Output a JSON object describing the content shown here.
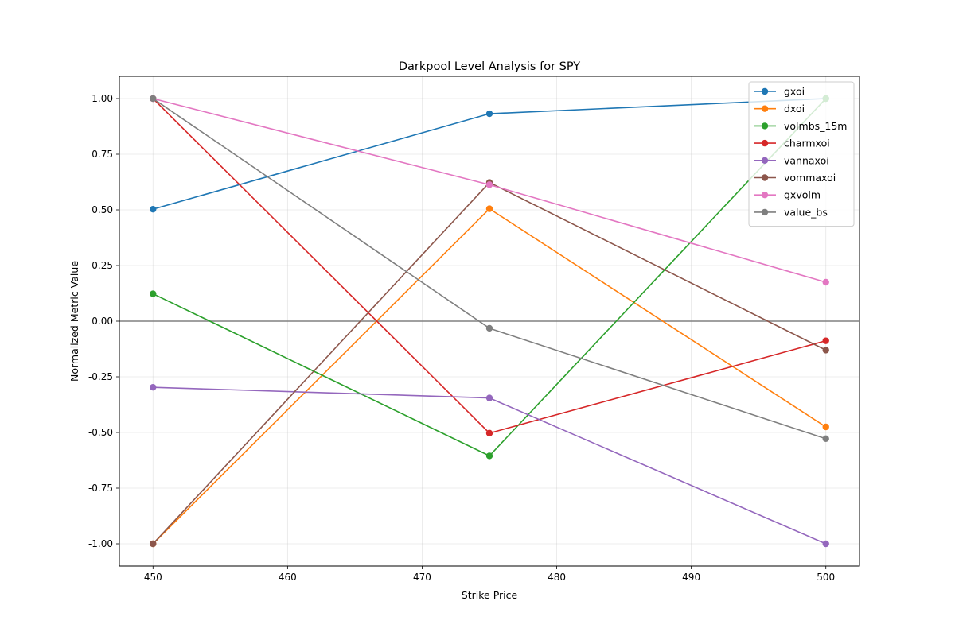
{
  "chart_data": {
    "type": "line",
    "title": "Darkpool Level Analysis for SPY",
    "xlabel": "Strike Price",
    "ylabel": "Normalized Metric Value",
    "x": [
      450,
      475,
      500
    ],
    "xlim": [
      447.5,
      502.5
    ],
    "ylim": [
      -1.1,
      1.1
    ],
    "xticks": [
      450,
      460,
      470,
      480,
      490,
      500
    ],
    "xtick_labels": [
      "450",
      "460",
      "470",
      "480",
      "490",
      "500"
    ],
    "yticks": [
      -1.0,
      -0.75,
      -0.5,
      -0.25,
      0.0,
      0.25,
      0.5,
      0.75,
      1.0
    ],
    "ytick_labels": [
      "-1.00",
      "-0.75",
      "-0.50",
      "-0.25",
      "0.00",
      "0.25",
      "0.50",
      "0.75",
      "1.00"
    ],
    "grid": true,
    "zero_line": true,
    "legend_position": "top-right",
    "series": [
      {
        "name": "gxoi",
        "color": "#1f77b4",
        "values": [
          0.503,
          0.932,
          1.0
        ]
      },
      {
        "name": "dxoi",
        "color": "#ff7f0e",
        "values": [
          -1.0,
          0.505,
          -0.475
        ]
      },
      {
        "name": "volmbs_15m",
        "color": "#2ca02c",
        "values": [
          0.123,
          -0.605,
          1.0
        ]
      },
      {
        "name": "charmxoi",
        "color": "#d62728",
        "values": [
          1.0,
          -0.503,
          -0.088
        ]
      },
      {
        "name": "vannaxoi",
        "color": "#9467bd",
        "values": [
          -0.297,
          -0.345,
          -1.0
        ]
      },
      {
        "name": "vommaxoi",
        "color": "#8c564b",
        "values": [
          -1.0,
          0.623,
          -0.13
        ]
      },
      {
        "name": "gxvolm",
        "color": "#e377c2",
        "values": [
          1.0,
          0.613,
          0.175
        ]
      },
      {
        "name": "value_bs",
        "color": "#7f7f7f",
        "values": [
          1.0,
          -0.032,
          -0.528
        ]
      }
    ]
  }
}
